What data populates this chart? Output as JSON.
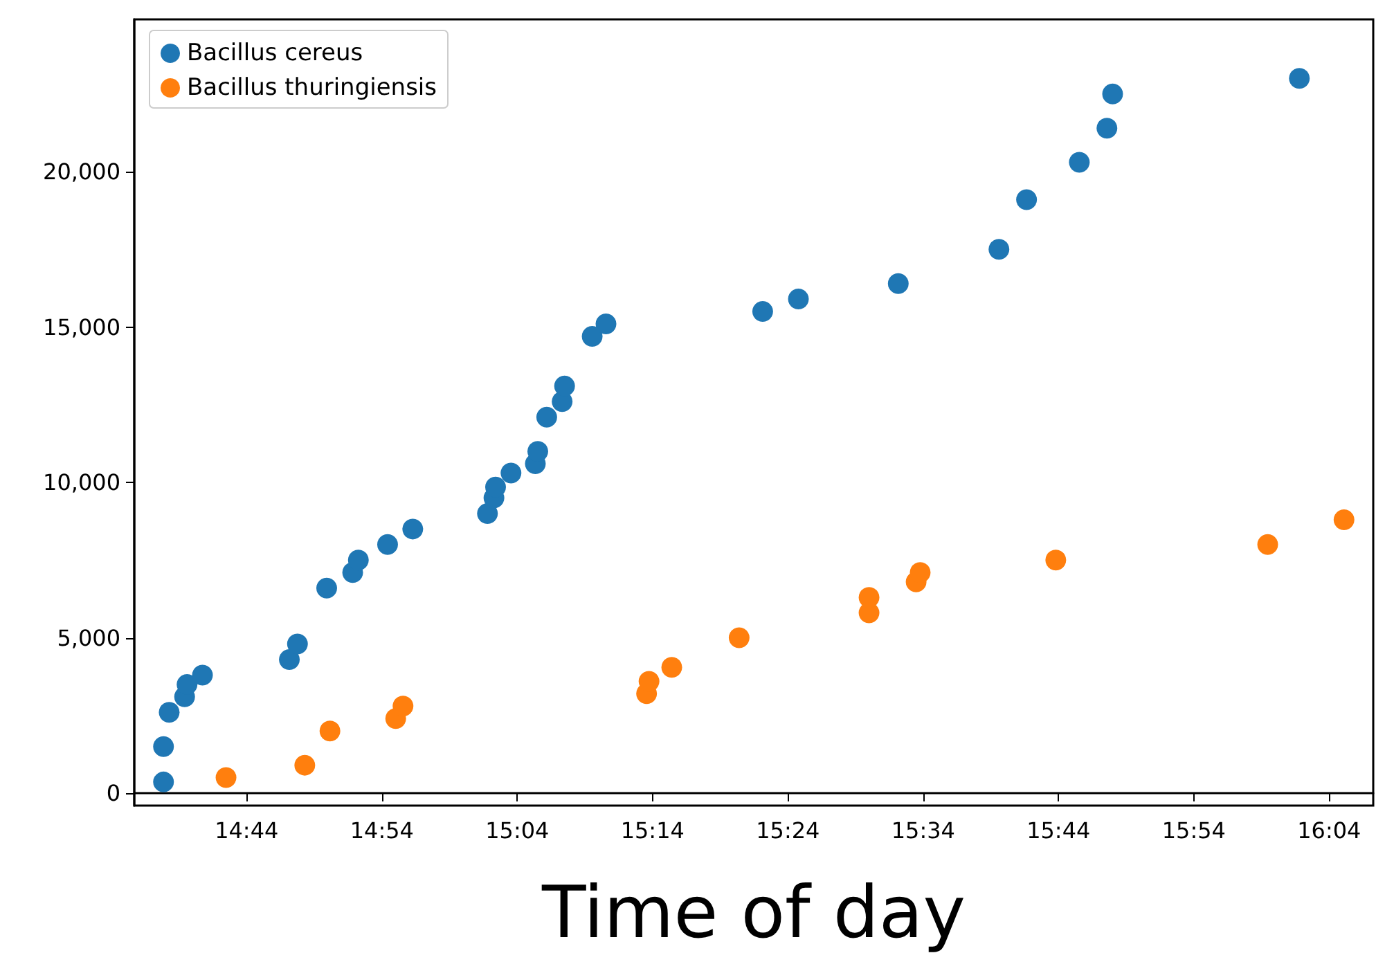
{
  "chart_data": {
    "type": "scatter",
    "xlabel": "Time of day",
    "xlim": [
      14.595,
      16.121
    ],
    "ylim": [
      -400,
      24900
    ],
    "xticks": [
      {
        "value": 14.7333,
        "label": "14:44"
      },
      {
        "value": 14.9,
        "label": "14:54"
      },
      {
        "value": 15.0667,
        "label": "15:04"
      },
      {
        "value": 15.2333,
        "label": "15:14"
      },
      {
        "value": 15.4,
        "label": "15:24"
      },
      {
        "value": 15.5667,
        "label": "15:34"
      },
      {
        "value": 15.7333,
        "label": "15:44"
      },
      {
        "value": 15.9,
        "label": "15:54"
      },
      {
        "value": 16.0667,
        "label": "16:04"
      }
    ],
    "yticks": [
      {
        "value": 0,
        "label": "0"
      },
      {
        "value": 5000,
        "label": "5,000"
      },
      {
        "value": 10000,
        "label": "10,000"
      },
      {
        "value": 15000,
        "label": "15,000"
      },
      {
        "value": 20000,
        "label": "20,000"
      }
    ],
    "legend": "top left",
    "marker": "circle",
    "series": [
      {
        "name": "Bacillus cereus",
        "color": "#1f77b4",
        "x": [
          14.631,
          14.631,
          14.638,
          14.657,
          14.66,
          14.679,
          14.786,
          14.796,
          14.832,
          14.864,
          14.871,
          14.907,
          14.938,
          15.03,
          15.038,
          15.04,
          15.059,
          15.089,
          15.092,
          15.103,
          15.122,
          15.125,
          15.159,
          15.176,
          15.369,
          15.413,
          15.536,
          15.66,
          15.694,
          15.759,
          15.793,
          15.8,
          16.03
        ],
        "values": [
          360,
          1500,
          2600,
          3100,
          3500,
          3800,
          4300,
          4800,
          6600,
          7100,
          7500,
          8000,
          8500,
          9000,
          9500,
          9850,
          10300,
          10600,
          11000,
          12100,
          12600,
          13100,
          14700,
          15100,
          15500,
          15900,
          16400,
          17500,
          19100,
          20300,
          21400,
          22500,
          23000
        ]
      },
      {
        "name": "Bacillus thuringiensis",
        "color": "#ff7f0e",
        "x": [
          14.708,
          14.805,
          14.836,
          14.917,
          14.926,
          15.226,
          15.229,
          15.257,
          15.34,
          15.5,
          15.5,
          15.558,
          15.563,
          15.73,
          15.991,
          16.085
        ],
        "values": [
          500,
          900,
          2000,
          2400,
          2800,
          3200,
          3600,
          4050,
          5000,
          5800,
          6300,
          6800,
          7100,
          7500,
          8000,
          8800
        ]
      }
    ]
  }
}
